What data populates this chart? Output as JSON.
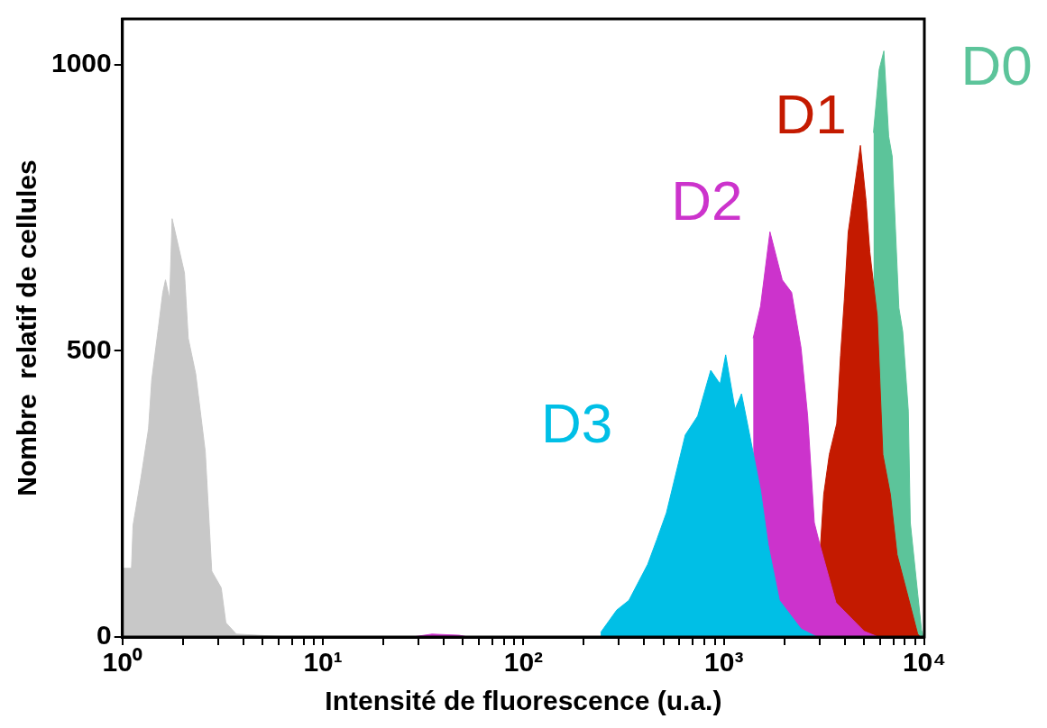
{
  "chart_data": {
    "type": "area",
    "xlabel": "Intensité de fluorescence (u.a.)",
    "ylabel": "Nombre  relatif de cellules",
    "log": "x",
    "xlim": [
      1,
      10000
    ],
    "ylim": [
      0,
      1080
    ],
    "xticks": [
      {
        "value": 1,
        "label": "10⁰"
      },
      {
        "value": 2,
        "label": null
      },
      {
        "value": 3,
        "label": null
      },
      {
        "value": 4,
        "label": null
      },
      {
        "value": 5,
        "label": null
      },
      {
        "value": 6,
        "label": null
      },
      {
        "value": 7,
        "label": null
      },
      {
        "value": 8,
        "label": null
      },
      {
        "value": 9,
        "label": null
      },
      {
        "value": 10,
        "label": "10¹"
      },
      {
        "value": 20,
        "label": null
      },
      {
        "value": 30,
        "label": null
      },
      {
        "value": 40,
        "label": null
      },
      {
        "value": 50,
        "label": null
      },
      {
        "value": 60,
        "label": null
      },
      {
        "value": 70,
        "label": null
      },
      {
        "value": 80,
        "label": null
      },
      {
        "value": 90,
        "label": null
      },
      {
        "value": 100,
        "label": "10²"
      },
      {
        "value": 200,
        "label": null
      },
      {
        "value": 300,
        "label": null
      },
      {
        "value": 400,
        "label": null
      },
      {
        "value": 500,
        "label": null
      },
      {
        "value": 600,
        "label": null
      },
      {
        "value": 700,
        "label": null
      },
      {
        "value": 800,
        "label": null
      },
      {
        "value": 900,
        "label": null
      },
      {
        "value": 1000,
        "label": "10³"
      },
      {
        "value": 2000,
        "label": null
      },
      {
        "value": 3000,
        "label": null
      },
      {
        "value": 4000,
        "label": null
      },
      {
        "value": 5000,
        "label": null
      },
      {
        "value": 6000,
        "label": null
      },
      {
        "value": 7000,
        "label": null
      },
      {
        "value": 8000,
        "label": null
      },
      {
        "value": 9000,
        "label": null
      },
      {
        "value": 10000,
        "label": "10⁴"
      }
    ],
    "yticks": [
      0,
      500,
      1000
    ],
    "grid": false,
    "legend": false,
    "marker": "none",
    "series": [
      {
        "name": "D0",
        "color": "#5cc49a",
        "x": [
          5572,
          5956,
          6281,
          6637,
          6918,
          7464,
          7798,
          8318,
          8511,
          9268,
          9683,
          9890
        ],
        "values": [
          881,
          992,
          1024,
          875,
          839,
          575,
          534,
          395,
          200,
          75,
          12,
          0
        ]
      },
      {
        "name": "D1",
        "color": "#c41a00",
        "x": [
          2900,
          3013,
          3148,
          3357,
          3656,
          3819,
          3990,
          4169,
          4797,
          5117,
          5346,
          5821,
          6209,
          6771,
          7311,
          8147,
          9268,
          9575
        ],
        "values": [
          0,
          144,
          249,
          319,
          373,
          492,
          590,
          707,
          859,
          763,
          673,
          561,
          319,
          249,
          144,
          81,
          5,
          0
        ]
      },
      {
        "name": "D2",
        "color": "#cc33cc",
        "x": [
          28,
          35,
          48,
          53,
          1100,
          1400,
          1524,
          1698,
          1955,
          2178,
          2427,
          2618,
          2825,
          3013,
          3622,
          5012,
          5888
        ],
        "values": [
          0,
          5,
          3,
          0,
          null,
          522,
          578,
          708,
          624,
          602,
          505,
          386,
          200,
          161,
          60,
          10,
          0
        ]
      },
      {
        "name": "D3",
        "color": "#00bfe6",
        "x": [
          243,
          292,
          336,
          417,
          464,
          517,
          576,
          642,
          740,
          860,
          958,
          1021,
          1137,
          1225,
          1366,
          1524,
          1663,
          1892,
          2427,
          2917
        ],
        "values": [
          8,
          47,
          64,
          127,
          171,
          217,
          285,
          353,
          386,
          466,
          442,
          493,
          398,
          425,
          341,
          256,
          161,
          64,
          14,
          0
        ]
      },
      {
        "color": "#c8c8c8",
        "x": [
          1,
          1.11,
          1.13,
          1.24,
          1.35,
          1.4,
          1.51,
          1.59,
          1.64,
          1.72,
          1.77,
          1.91,
          2.04,
          2.13,
          2.32,
          2.59,
          2.79,
          3.11,
          3.28,
          3.7,
          6.85
        ],
        "values": [
          120,
          120,
          195,
          280,
          364,
          449,
          539,
          602,
          624,
          590,
          731,
          680,
          636,
          522,
          460,
          324,
          115,
          86,
          25,
          5,
          0
        ]
      }
    ]
  }
}
